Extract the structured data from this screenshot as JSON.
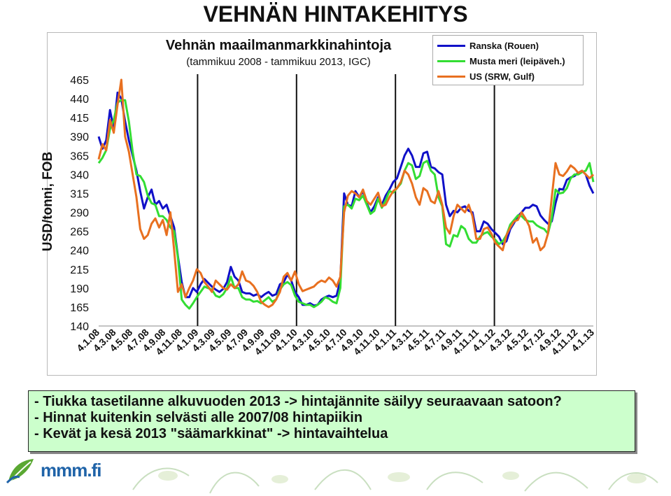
{
  "page": {
    "title": "VEHNÄN HINTAKEHITYS",
    "subtitle": "Vehnän maailmanmarkkinahintoja",
    "subtitle2": "(tammikuu 2008 - tammikuu 2013, IGC)",
    "ylabel": "USD/tonni, FOB"
  },
  "legend": [
    {
      "name": "Ranska (Rouen)",
      "color": "#1010c8"
    },
    {
      "name": "Musta meri (leipäveh.)",
      "color": "#33dd33"
    },
    {
      "name": "US (SRW, Gulf)",
      "color": "#e87020"
    }
  ],
  "notes": [
    "- Tiukka tasetilanne alkuvuoden 2013 -> hintajännite säilyy seuraavaan satoon?",
    "- Hinnat kuitenkin selvästi alle 2007/08 hintapiikin",
    "- Kevät ja kesä 2013 \"säämarkkinat\" -> hintavaihtelua"
  ],
  "logo": {
    "text": "mmm.fi",
    "icon": "leaf-logo-icon"
  },
  "chart_data": {
    "type": "line",
    "ylim": [
      140,
      465
    ],
    "yticks": [
      140,
      165,
      190,
      215,
      240,
      265,
      290,
      315,
      340,
      365,
      390,
      415,
      440,
      465
    ],
    "xticks": [
      "4.1.08",
      "4.3.08",
      "4.5.08",
      "4.7.08",
      "4.9.08",
      "4.11.08",
      "4.1.09",
      "4.3.09",
      "4.5.09",
      "4.7.09",
      "4.9.09",
      "4.11.09",
      "4.1.10",
      "4.3.10",
      "4.5.10",
      "4.7.10",
      "4.9.10",
      "4.11.10",
      "4.1.11",
      "4.3.11",
      "4.5.11",
      "4.7.11",
      "4.9.11",
      "4.11.11",
      "4.1.12",
      "4.3.12",
      "4.5.12",
      "4.7.12",
      "4.9.12",
      "4.11.12",
      "4.1.13"
    ],
    "vlines": [
      "4.1.09",
      "4.1.10",
      "4.1.11",
      "4.1.12"
    ],
    "series": [
      {
        "name": "Ranska (Rouen)",
        "color": "#1010c8",
        "values": [
          390,
          374,
          385,
          425,
          400,
          448,
          440,
          410,
          385,
          365,
          345,
          318,
          295,
          310,
          320,
          300,
          305,
          295,
          300,
          285,
          270,
          232,
          198,
          178,
          178,
          190,
          185,
          195,
          202,
          197,
          192,
          188,
          185,
          189,
          198,
          218,
          205,
          200,
          185,
          183,
          183,
          180,
          182,
          178,
          182,
          185,
          180,
          182,
          195,
          198,
          208,
          200,
          185,
          178,
          168,
          168,
          170,
          167,
          168,
          175,
          178,
          180,
          178,
          180,
          200,
          315,
          300,
          298,
          318,
          310,
          318,
          302,
          290,
          298,
          310,
          300,
          312,
          320,
          330,
          335,
          350,
          365,
          374,
          365,
          350,
          350,
          368,
          370,
          350,
          348,
          343,
          340,
          300,
          285,
          292,
          290,
          296,
          298,
          292,
          290,
          265,
          265,
          278,
          275,
          268,
          263,
          258,
          248,
          252,
          268,
          276,
          285,
          290,
          296,
          296,
          300,
          298,
          286,
          280,
          275,
          278,
          302,
          321,
          320,
          333,
          336,
          338,
          342,
          345,
          340,
          325,
          315
        ]
      },
      {
        "name": "Musta meri (leipäveh.)",
        "color": "#33dd33",
        "values": [
          355,
          362,
          372,
          400,
          412,
          435,
          438,
          438,
          410,
          370,
          340,
          338,
          330,
          312,
          302,
          300,
          285,
          285,
          280,
          270,
          265,
          230,
          175,
          168,
          163,
          170,
          178,
          185,
          192,
          190,
          188,
          180,
          178,
          182,
          190,
          205,
          190,
          190,
          178,
          175,
          175,
          172,
          173,
          170,
          174,
          178,
          172,
          175,
          188,
          195,
          198,
          194,
          180,
          172,
          170,
          168,
          168,
          165,
          168,
          172,
          178,
          176,
          172,
          170,
          190,
          298,
          300,
          295,
          308,
          306,
          312,
          300,
          288,
          292,
          308,
          296,
          306,
          318,
          316,
          322,
          328,
          345,
          355,
          352,
          334,
          338,
          355,
          358,
          345,
          340,
          310,
          298,
          248,
          245,
          260,
          258,
          272,
          268,
          255,
          250,
          250,
          258,
          262,
          264,
          258,
          254,
          248,
          252,
          260,
          274,
          280,
          286,
          285,
          280,
          278,
          278,
          273,
          270,
          268,
          262,
          282,
          320,
          315,
          316,
          322,
          335,
          340,
          340,
          343,
          345,
          355,
          330
        ]
      },
      {
        "name": "US (SRW, Gulf)",
        "color": "#e87020",
        "values": [
          360,
          380,
          372,
          412,
          395,
          432,
          465,
          390,
          370,
          340,
          310,
          268,
          255,
          260,
          275,
          282,
          270,
          280,
          260,
          290,
          240,
          185,
          195,
          178,
          190,
          200,
          215,
          210,
          198,
          192,
          185,
          200,
          195,
          190,
          188,
          195,
          190,
          195,
          212,
          200,
          198,
          193,
          185,
          172,
          168,
          165,
          168,
          175,
          185,
          205,
          210,
          200,
          212,
          195,
          186,
          188,
          190,
          192,
          197,
          200,
          198,
          204,
          200,
          192,
          205,
          290,
          312,
          318,
          315,
          310,
          320,
          305,
          300,
          308,
          316,
          298,
          300,
          310,
          318,
          322,
          330,
          345,
          340,
          328,
          310,
          300,
          322,
          318,
          305,
          302,
          318,
          300,
          270,
          262,
          285,
          300,
          295,
          290,
          300,
          285,
          255,
          255,
          268,
          270,
          262,
          250,
          245,
          240,
          260,
          270,
          278,
          280,
          290,
          282,
          272,
          250,
          256,
          240,
          245,
          262,
          310,
          355,
          340,
          338,
          344,
          352,
          348,
          342,
          345,
          340,
          335,
          340
        ]
      }
    ]
  }
}
